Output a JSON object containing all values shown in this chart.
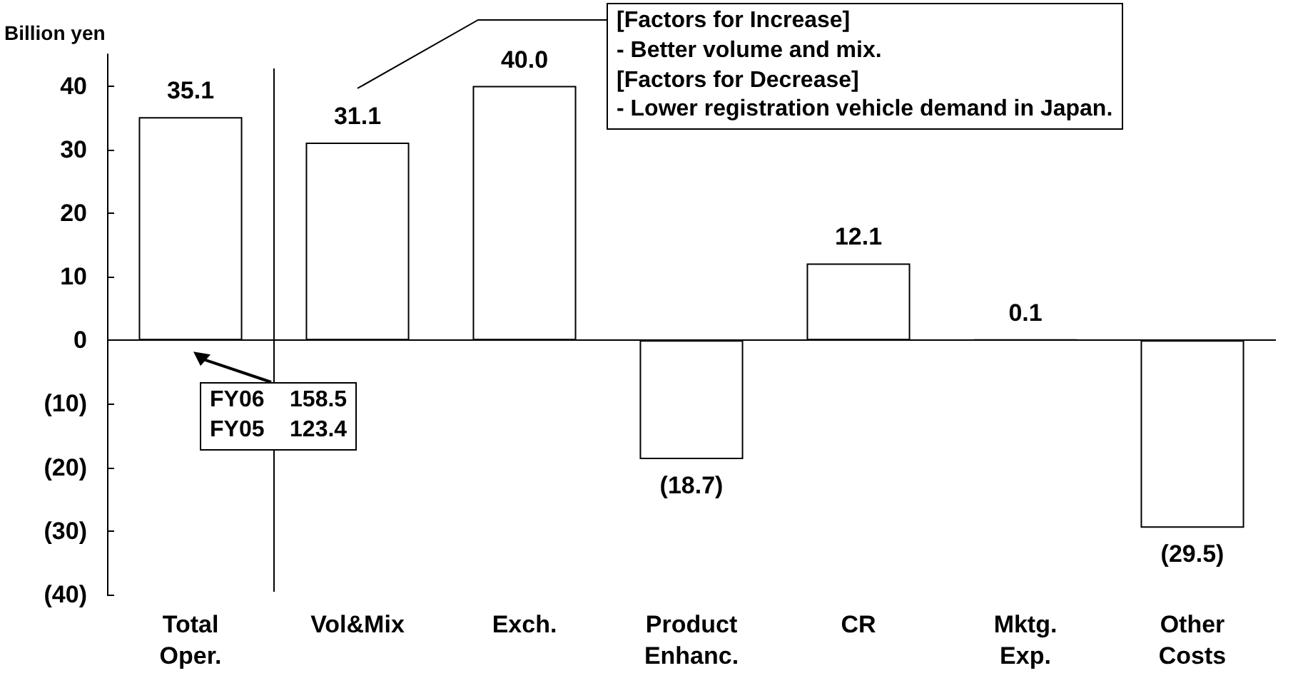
{
  "chart_data": {
    "type": "bar",
    "ylabel": "Billion yen",
    "categories": [
      "Total Oper.",
      "Vol&Mix",
      "Exch.",
      "Product Enhanc.",
      "CR",
      "Mktg. Exp.",
      "Other Costs"
    ],
    "values": [
      35.1,
      31.1,
      40.0,
      -18.7,
      12.1,
      0.1,
      -29.5
    ],
    "value_labels": [
      "35.1",
      "31.1",
      "40.0",
      "(18.7)",
      "12.1",
      "0.1",
      "(29.5)"
    ],
    "colors": [
      "#ffffff",
      "#ffffff",
      "#ffffff",
      "#ffffff",
      "#ffffff",
      "#000000",
      "#ffffff"
    ],
    "ylim": [
      -40,
      45
    ],
    "yticks": [
      {
        "value": -40,
        "label": "(40)"
      },
      {
        "value": -30,
        "label": "(30)"
      },
      {
        "value": -20,
        "label": "(20)"
      },
      {
        "value": -10,
        "label": "(10)"
      },
      0,
      10,
      20,
      30,
      40
    ],
    "grid": false,
    "ref_lines": [
      {
        "axis": "y",
        "value": 0,
        "color": "#000000",
        "line_style": "solid"
      }
    ],
    "annotations": [
      "FY06    158.5\nFY05    123.4",
      "[Factors for Increase]\n- Better volume and mix.\n[Factors for Decrease]\n- Lower registration vehicle demand in Japan."
    ]
  }
}
